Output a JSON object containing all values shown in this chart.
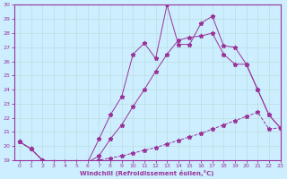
{
  "xlabel": "Windchill (Refroidissement éolien,°C)",
  "xlim": [
    -0.5,
    23
  ],
  "ylim": [
    19,
    30
  ],
  "yticks": [
    19,
    20,
    21,
    22,
    23,
    24,
    25,
    26,
    27,
    28,
    29,
    30
  ],
  "xticks": [
    0,
    1,
    2,
    3,
    4,
    5,
    6,
    7,
    8,
    9,
    10,
    11,
    12,
    13,
    14,
    15,
    16,
    17,
    18,
    19,
    20,
    21,
    22,
    23
  ],
  "bg_color": "#cceeff",
  "line_color": "#993399",
  "grid_color": "#bbdddd",
  "curve1_x": [
    0,
    1,
    2,
    3,
    4,
    5,
    6,
    7,
    8,
    9,
    10,
    11,
    12,
    13,
    14,
    15,
    16,
    17,
    18,
    19,
    20,
    21,
    22,
    23
  ],
  "curve1_y": [
    20.3,
    19.8,
    19.0,
    18.85,
    18.85,
    18.85,
    18.85,
    20.5,
    22.2,
    23.5,
    26.5,
    27.3,
    26.2,
    30.0,
    27.2,
    27.2,
    28.7,
    29.2,
    27.1,
    27.0,
    25.8,
    24.0,
    22.2,
    21.3
  ],
  "curve2_x": [
    0,
    1,
    2,
    3,
    4,
    5,
    6,
    7,
    8,
    9,
    10,
    11,
    12,
    13,
    14,
    15,
    16,
    17,
    18,
    19,
    20,
    21,
    22,
    23
  ],
  "curve2_y": [
    20.3,
    19.8,
    19.0,
    18.85,
    18.85,
    18.85,
    18.85,
    19.3,
    20.5,
    21.5,
    22.8,
    24.0,
    25.3,
    26.5,
    27.5,
    27.7,
    27.8,
    28.0,
    26.5,
    25.8,
    25.8,
    24.0,
    22.2,
    21.3
  ],
  "curve3_x": [
    0,
    1,
    2,
    3,
    4,
    5,
    6,
    7,
    8,
    9,
    10,
    11,
    12,
    13,
    14,
    15,
    16,
    17,
    18,
    19,
    20,
    21,
    22,
    23
  ],
  "curve3_y": [
    20.3,
    19.8,
    19.0,
    18.85,
    18.85,
    18.85,
    18.85,
    19.0,
    19.15,
    19.3,
    19.5,
    19.7,
    19.9,
    20.15,
    20.4,
    20.65,
    20.9,
    21.2,
    21.5,
    21.8,
    22.1,
    22.4,
    21.2,
    21.3
  ]
}
